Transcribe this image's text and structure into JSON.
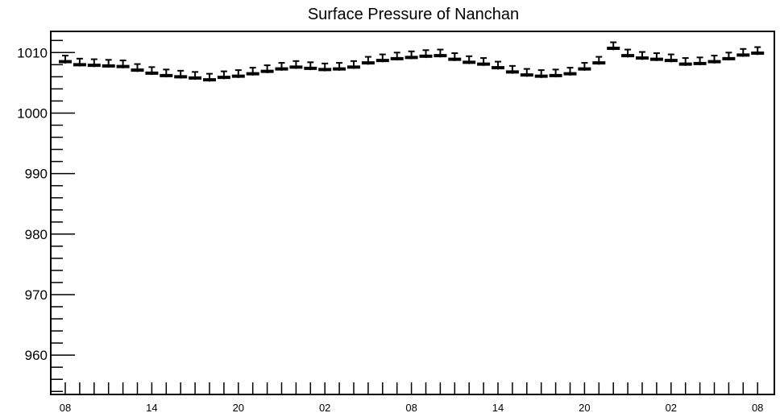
{
  "chart_data": {
    "type": "scatter",
    "title": "Surface Pressure of Nanchan",
    "xlabel": "",
    "ylabel": "",
    "ylim": [
      953.5,
      1013.5
    ],
    "y_ticks": [
      960,
      970,
      980,
      990,
      1000,
      1010
    ],
    "y_tick_labels": [
      "960",
      "970",
      "980",
      "990",
      "1000",
      "1010"
    ],
    "x_tick_labels": [
      "08",
      "14",
      "20",
      "02",
      "08",
      "14",
      "20",
      "02",
      "08"
    ],
    "x_start_hour": 8,
    "x_hours": [
      0,
      1,
      2,
      3,
      4,
      5,
      6,
      7,
      8,
      9,
      10,
      11,
      12,
      13,
      14,
      15,
      16,
      17,
      18,
      19,
      20,
      21,
      22,
      23,
      24,
      25,
      26,
      27,
      28,
      29,
      30,
      31,
      32,
      33,
      34,
      35,
      36,
      37,
      38,
      39,
      40,
      41,
      42,
      43,
      44,
      45,
      46,
      47,
      48
    ],
    "values": [
      1008.5,
      1008.0,
      1007.9,
      1007.8,
      1007.7,
      1007.1,
      1006.6,
      1006.2,
      1006.0,
      1005.8,
      1005.5,
      1005.9,
      1006.1,
      1006.5,
      1006.9,
      1007.3,
      1007.6,
      1007.4,
      1007.2,
      1007.3,
      1007.6,
      1008.3,
      1008.7,
      1009.0,
      1009.2,
      1009.4,
      1009.5,
      1008.9,
      1008.4,
      1008.1,
      1007.5,
      1006.8,
      1006.3,
      1006.1,
      1006.2,
      1006.5,
      1007.3,
      1008.3,
      1010.7,
      1009.5,
      1009.1,
      1008.9,
      1008.7,
      1008.1,
      1008.2,
      1008.5,
      1009.0,
      1009.6,
      1009.9
    ],
    "error_up": 1.0,
    "error_down": 0.3,
    "marker_color": "#000000",
    "grid": false,
    "legend": "none"
  }
}
